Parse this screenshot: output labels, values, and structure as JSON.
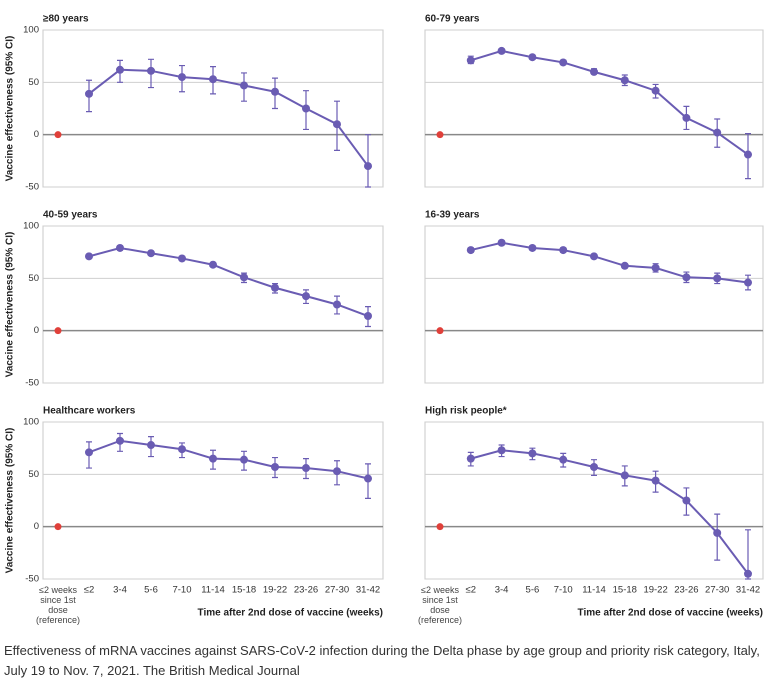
{
  "chart_data": [
    {
      "type": "line",
      "title": "≥80 years",
      "ylabel": "Vaccine effectiveness (95% CI)",
      "color": "#6a5cb3",
      "categories": [
        null,
        null,
        null,
        null,
        null,
        null,
        null,
        null,
        null,
        null,
        null
      ],
      "reference": {
        "value": 0,
        "color": "#e0403a"
      },
      "values": [
        null,
        39,
        62,
        61,
        55,
        53,
        47,
        41,
        25,
        10,
        -30
      ],
      "lower": [
        null,
        22,
        50,
        45,
        41,
        39,
        32,
        25,
        5,
        -15,
        -50
      ],
      "upper": [
        null,
        52,
        71,
        72,
        66,
        65,
        59,
        54,
        42,
        32,
        0
      ],
      "ylim": [
        -50,
        100
      ],
      "yticks": [
        -50,
        0,
        50,
        100
      ]
    },
    {
      "type": "line",
      "title": "60-79 years",
      "color": "#6a5cb3",
      "categories": [
        null,
        null,
        null,
        null,
        null,
        null,
        null,
        null,
        null,
        null,
        null
      ],
      "reference": {
        "value": 0,
        "color": "#e0403a"
      },
      "values": [
        null,
        71,
        80,
        74,
        69,
        60,
        52,
        42,
        16,
        2,
        -19
      ],
      "lower": [
        null,
        68,
        78,
        72,
        67,
        58,
        47,
        35,
        5,
        -12,
        -42
      ],
      "upper": [
        null,
        75,
        82,
        76,
        71,
        63,
        57,
        48,
        27,
        15,
        1
      ],
      "ylim": [
        -50,
        100
      ],
      "yticks": [
        -50,
        0,
        50,
        100
      ]
    },
    {
      "type": "line",
      "title": "40-59 years",
      "ylabel": "Vaccine effectiveness (95% CI)",
      "color": "#6a5cb3",
      "categories": [
        null,
        null,
        null,
        null,
        null,
        null,
        null,
        null,
        null,
        null,
        null
      ],
      "reference": {
        "value": 0,
        "color": "#e0403a"
      },
      "values": [
        null,
        71,
        79,
        74,
        69,
        63,
        51,
        41,
        33,
        25,
        14
      ],
      "lower": [
        null,
        69,
        77,
        72,
        67,
        61,
        46,
        36,
        26,
        16,
        4
      ],
      "upper": [
        null,
        73,
        81,
        76,
        71,
        65,
        55,
        45,
        39,
        33,
        23
      ],
      "ylim": [
        -50,
        100
      ],
      "yticks": [
        -50,
        0,
        50,
        100
      ]
    },
    {
      "type": "line",
      "title": "16-39 years",
      "color": "#6a5cb3",
      "categories": [
        null,
        null,
        null,
        null,
        null,
        null,
        null,
        null,
        null,
        null,
        null
      ],
      "reference": {
        "value": 0,
        "color": "#e0403a"
      },
      "values": [
        null,
        77,
        84,
        79,
        77,
        71,
        62,
        60,
        51,
        50,
        46
      ],
      "lower": [
        null,
        75,
        82,
        77,
        75,
        69,
        60,
        56,
        46,
        45,
        39
      ],
      "upper": [
        null,
        79,
        86,
        81,
        79,
        73,
        64,
        64,
        56,
        55,
        53
      ],
      "ylim": [
        -50,
        100
      ],
      "yticks": [
        -50,
        0,
        50,
        100
      ]
    },
    {
      "type": "line",
      "title": "Healthcare workers",
      "ylabel": "Vaccine effectiveness (95% CI)",
      "xlabel": "Time after 2nd dose of vaccine (weeks)",
      "color": "#6a5cb3",
      "categories": [
        "≤2 weeks since 1st dose (reference)",
        "≤2",
        "3-4",
        "5-6",
        "7-10",
        "11-14",
        "15-18",
        "19-22",
        "23-26",
        "27-30",
        "31-42"
      ],
      "reference": {
        "value": 0,
        "color": "#e0403a"
      },
      "values": [
        null,
        71,
        82,
        78,
        74,
        65,
        64,
        57,
        56,
        53,
        46
      ],
      "lower": [
        null,
        56,
        72,
        67,
        66,
        55,
        54,
        47,
        46,
        40,
        27
      ],
      "upper": [
        null,
        81,
        89,
        86,
        80,
        73,
        72,
        66,
        65,
        63,
        60
      ],
      "ylim": [
        -50,
        100
      ],
      "yticks": [
        -50,
        0,
        50,
        100
      ]
    },
    {
      "type": "line",
      "title": "High risk people*",
      "xlabel": "Time after 2nd dose of vaccine (weeks)",
      "color": "#6a5cb3",
      "categories": [
        "≤2 weeks since 1st dose (reference)",
        "≤2",
        "3-4",
        "5-6",
        "7-10",
        "11-14",
        "15-18",
        "19-22",
        "23-26",
        "27-30",
        "31-42"
      ],
      "reference": {
        "value": 0,
        "color": "#e0403a"
      },
      "values": [
        null,
        65,
        73,
        70,
        64,
        57,
        49,
        44,
        25,
        -6,
        -45
      ],
      "lower": [
        null,
        58,
        67,
        64,
        57,
        49,
        39,
        33,
        11,
        -32,
        -50
      ],
      "upper": [
        null,
        71,
        78,
        75,
        70,
        64,
        58,
        53,
        37,
        12,
        -3
      ],
      "ylim": [
        -50,
        100
      ],
      "yticks": [
        -50,
        0,
        50,
        100
      ]
    }
  ],
  "caption": "Effectiveness of mRNA vaccines against SARS-CoV-2 infection during the Delta phase by age group and priority risk category, Italy, July 19 to Nov. 7, 2021. The British Medical Journal"
}
